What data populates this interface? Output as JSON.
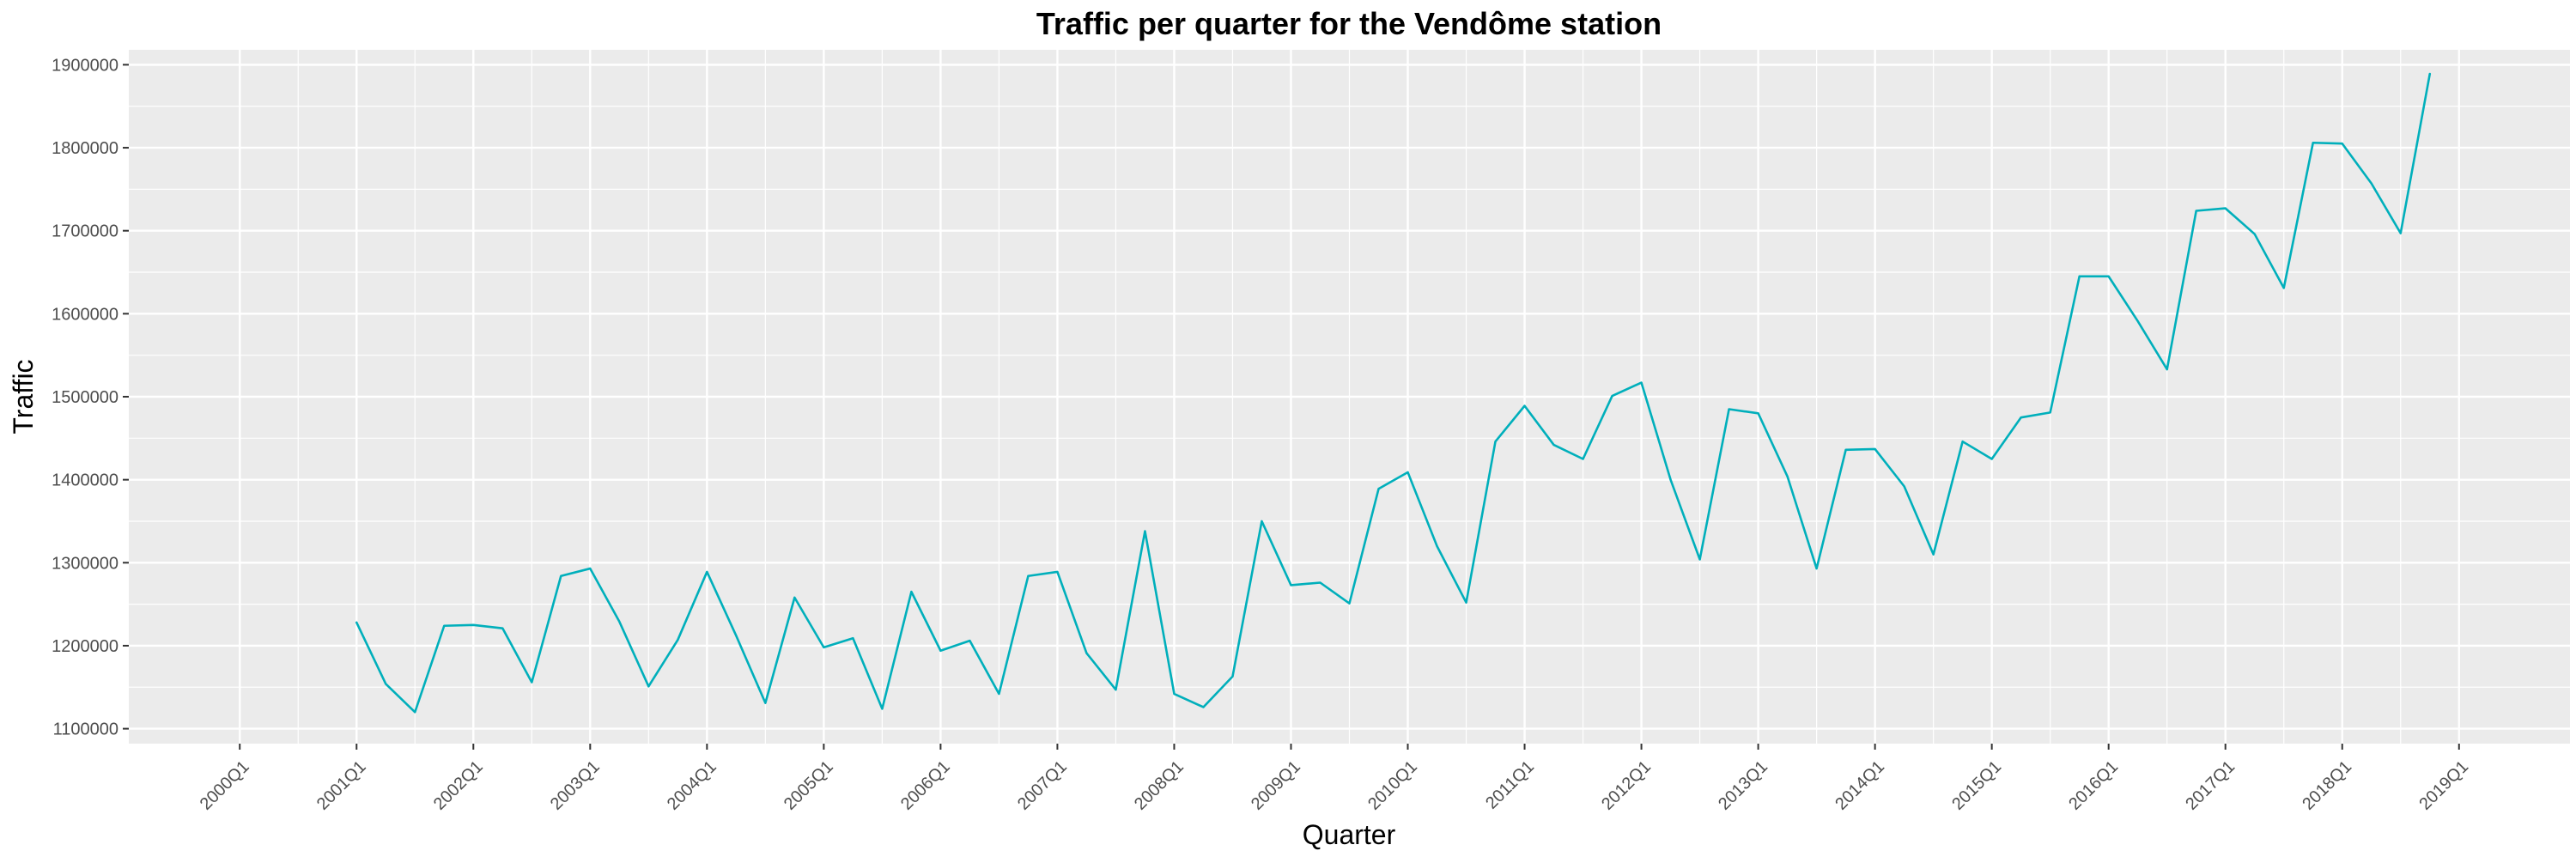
{
  "chart_data": {
    "type": "line",
    "title": "Traffic per quarter for the Vendôme station",
    "xlabel": "Quarter",
    "ylabel": "Traffic",
    "x_tick_labels": [
      "2000Q1",
      "2001Q1",
      "2002Q1",
      "2003Q1",
      "2004Q1",
      "2005Q1",
      "2006Q1",
      "2007Q1",
      "2008Q1",
      "2009Q1",
      "2010Q1",
      "2011Q1",
      "2012Q1",
      "2013Q1",
      "2014Q1",
      "2015Q1",
      "2016Q1",
      "2017Q1",
      "2018Q1",
      "2019Q1"
    ],
    "y_ticks": [
      1100000,
      1200000,
      1300000,
      1400000,
      1500000,
      1600000,
      1700000,
      1800000,
      1900000
    ],
    "y_tick_labels": [
      "1100000",
      "1200000",
      "1300000",
      "1400000",
      "1500000",
      "1600000",
      "1700000",
      "1800000",
      "1900000"
    ],
    "xlim": [
      "2000Q1",
      "2019Q1"
    ],
    "ylim": [
      1082000,
      1918000
    ],
    "grid": true,
    "series": [
      {
        "color": "#00AFBB",
        "x": [
          "2001Q1",
          "2001Q2",
          "2001Q3",
          "2001Q4",
          "2002Q1",
          "2002Q2",
          "2002Q3",
          "2002Q4",
          "2003Q1",
          "2003Q2",
          "2003Q3",
          "2003Q4",
          "2004Q1",
          "2004Q2",
          "2004Q3",
          "2004Q4",
          "2005Q1",
          "2005Q2",
          "2005Q3",
          "2005Q4",
          "2006Q1",
          "2006Q2",
          "2006Q3",
          "2006Q4",
          "2007Q1",
          "2007Q2",
          "2007Q3",
          "2007Q4",
          "2008Q1",
          "2008Q2",
          "2008Q3",
          "2008Q4",
          "2009Q1",
          "2009Q2",
          "2009Q3",
          "2009Q4",
          "2010Q1",
          "2010Q2",
          "2010Q3",
          "2010Q4",
          "2011Q1",
          "2011Q2",
          "2011Q3",
          "2011Q4",
          "2012Q1",
          "2012Q2",
          "2012Q3",
          "2012Q4",
          "2013Q1",
          "2013Q2",
          "2013Q3",
          "2013Q4",
          "2014Q1",
          "2014Q2",
          "2014Q3",
          "2014Q4",
          "2015Q1",
          "2015Q2",
          "2015Q3",
          "2015Q4",
          "2016Q1",
          "2016Q2",
          "2016Q3",
          "2016Q4",
          "2017Q1",
          "2017Q2",
          "2017Q3",
          "2017Q4",
          "2018Q1",
          "2018Q2",
          "2018Q3",
          "2018Q4"
        ],
        "values": [
          1228000,
          1154000,
          1120000,
          1224000,
          1225000,
          1221000,
          1156000,
          1284000,
          1293000,
          1229000,
          1151000,
          1207000,
          1289000,
          1212000,
          1131000,
          1258000,
          1198000,
          1209000,
          1124000,
          1265000,
          1194000,
          1206000,
          1142000,
          1284000,
          1289000,
          1191000,
          1147000,
          1338000,
          1142000,
          1126000,
          1163000,
          1350000,
          1273000,
          1276000,
          1251000,
          1389000,
          1409000,
          1320000,
          1252000,
          1446000,
          1489000,
          1442000,
          1425000,
          1501000,
          1517000,
          1400000,
          1304000,
          1485000,
          1480000,
          1404000,
          1293000,
          1436000,
          1437000,
          1392000,
          1310000,
          1446000,
          1425000,
          1475000,
          1481000,
          1645000,
          1645000,
          1591000,
          1533000,
          1724000,
          1727000,
          1696000,
          1631000,
          1806000,
          1805000,
          1757000,
          1697000,
          1889000
        ]
      }
    ]
  }
}
